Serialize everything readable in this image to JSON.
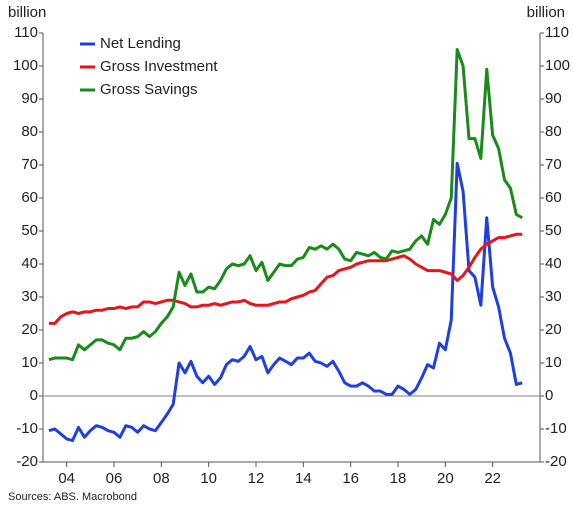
{
  "chart_data": {
    "type": "line",
    "y_label": "billion",
    "y2_label": "billion",
    "source": "Sources: ABS. Macrobond",
    "x": [
      2003.25,
      2003.5,
      2003.75,
      2004,
      2004.25,
      2004.5,
      2004.75,
      2005,
      2005.25,
      2005.5,
      2005.75,
      2006,
      2006.25,
      2006.5,
      2006.75,
      2007,
      2007.25,
      2007.5,
      2007.75,
      2008,
      2008.25,
      2008.5,
      2008.75,
      2009,
      2009.25,
      2009.5,
      2009.75,
      2010,
      2010.25,
      2010.5,
      2010.75,
      2011,
      2011.25,
      2011.5,
      2011.75,
      2012,
      2012.25,
      2012.5,
      2012.75,
      2013,
      2013.25,
      2013.5,
      2013.75,
      2014,
      2014.25,
      2014.5,
      2014.75,
      2015,
      2015.25,
      2015.5,
      2015.75,
      2016,
      2016.25,
      2016.5,
      2016.75,
      2017,
      2017.25,
      2017.5,
      2017.75,
      2018,
      2018.25,
      2018.5,
      2018.75,
      2019,
      2019.25,
      2019.5,
      2019.75,
      2020,
      2020.25,
      2020.5,
      2020.75,
      2021,
      2021.25,
      2021.5,
      2021.75,
      2022,
      2022.25,
      2022.5,
      2022.75,
      2023,
      2023.25
    ],
    "series": [
      {
        "name": "Net Lending",
        "color": "#1f3fe0",
        "values": [
          -10.5,
          -10,
          -11.5,
          -13,
          -13.5,
          -9.5,
          -12.5,
          -10.5,
          -9,
          -9.5,
          -10.5,
          -11,
          -12.5,
          -9,
          -9.5,
          -11,
          -9,
          -10,
          -10.5,
          -8,
          -5.5,
          -2.5,
          10,
          7,
          10.5,
          6,
          4,
          6,
          3.5,
          5.5,
          9.5,
          11,
          10.5,
          12,
          15,
          11,
          12,
          7,
          9.5,
          11.5,
          10.5,
          9.5,
          11.5,
          11.5,
          13,
          10.5,
          10,
          9,
          10.5,
          7.5,
          4,
          3,
          3,
          4,
          3,
          1.5,
          1.5,
          0.5,
          0.5,
          3,
          2,
          0.5,
          2,
          5.5,
          9.5,
          8.5,
          16,
          14,
          23,
          70.5,
          62,
          38,
          36,
          27.5,
          54,
          33,
          27,
          17.5,
          13,
          3.5,
          4
        ]
      },
      {
        "name": "Gross Investment",
        "color": "#e8141c",
        "values": [
          22,
          22,
          24,
          25,
          25.5,
          25,
          25.5,
          25.5,
          26,
          26,
          26.5,
          26.5,
          27,
          26.5,
          27,
          27,
          28.5,
          28.5,
          28,
          28.5,
          29,
          29,
          28.5,
          28,
          27,
          27,
          27.5,
          27.5,
          28,
          27.5,
          28,
          28.5,
          28.5,
          29,
          28,
          27.5,
          27.5,
          27.5,
          28,
          28.5,
          28.5,
          29.5,
          30,
          30.5,
          31.5,
          32,
          34,
          36,
          36.5,
          38,
          38.5,
          39,
          40,
          40.5,
          41,
          41,
          41,
          41,
          41.5,
          42,
          42.5,
          41.5,
          40,
          39,
          38,
          38,
          38,
          37.5,
          37,
          35,
          36.5,
          39,
          42,
          44.5,
          46,
          47,
          48,
          48,
          48.5,
          49,
          49
        ]
      },
      {
        "name": "Gross Savings",
        "color": "#1a8a1a",
        "values": [
          11,
          11.5,
          11.5,
          11.5,
          11,
          15.5,
          14,
          15.5,
          17,
          17,
          16,
          15.5,
          14,
          17.5,
          17.5,
          18,
          19.5,
          18,
          19.5,
          22,
          24,
          27,
          37.5,
          33.5,
          37,
          31.5,
          31.5,
          33,
          32.5,
          35,
          38.5,
          40,
          39.5,
          40,
          42.5,
          38,
          40.5,
          35,
          37.5,
          40,
          39.5,
          39.5,
          41.5,
          42,
          45,
          44.5,
          45.5,
          44.5,
          46,
          44.5,
          41.5,
          41,
          43.5,
          43,
          42.5,
          43.5,
          42,
          41.5,
          44,
          43.5,
          44,
          44.5,
          47,
          48.5,
          46,
          53.5,
          52,
          55,
          60,
          105,
          100,
          78,
          78,
          72,
          99,
          79,
          75,
          65.5,
          63,
          55,
          54
        ]
      }
    ],
    "xlim": [
      2003,
      2024
    ],
    "xticks": [
      {
        "value": 2004,
        "label": "04"
      },
      {
        "value": 2006,
        "label": "06"
      },
      {
        "value": 2008,
        "label": "08"
      },
      {
        "value": 2010,
        "label": "10"
      },
      {
        "value": 2012,
        "label": "12"
      },
      {
        "value": 2014,
        "label": "14"
      },
      {
        "value": 2016,
        "label": "16"
      },
      {
        "value": 2018,
        "label": "18"
      },
      {
        "value": 2020,
        "label": "20"
      },
      {
        "value": 2022,
        "label": "22"
      }
    ],
    "ylim": [
      -20,
      110
    ],
    "yticks": [
      -20,
      -10,
      0,
      10,
      20,
      30,
      40,
      50,
      60,
      70,
      80,
      90,
      100,
      110
    ],
    "y2lim": [
      -20,
      110
    ],
    "y2ticks": [
      -20,
      -10,
      0,
      10,
      20,
      30,
      40,
      50,
      60,
      70,
      80,
      90,
      100,
      110
    ],
    "legend": "upper left"
  }
}
